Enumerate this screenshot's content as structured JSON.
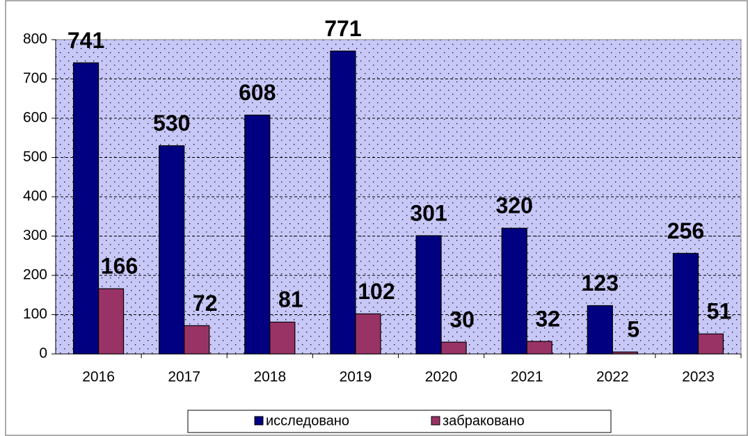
{
  "chart_data": {
    "type": "bar",
    "categories": [
      "2016",
      "2017",
      "2018",
      "2019",
      "2020",
      "2021",
      "2022",
      "2023"
    ],
    "series": [
      {
        "name": "исследовано",
        "color": "#000080",
        "values": [
          741,
          530,
          608,
          771,
          301,
          320,
          123,
          256
        ]
      },
      {
        "name": "забраковано",
        "color": "#993366",
        "values": [
          166,
          72,
          81,
          102,
          30,
          32,
          5,
          51
        ]
      }
    ],
    "ylim": [
      0,
      800
    ],
    "yticks": [
      0,
      100,
      200,
      300,
      400,
      500,
      600,
      700,
      800
    ],
    "grid": true,
    "legend": "bottom"
  }
}
